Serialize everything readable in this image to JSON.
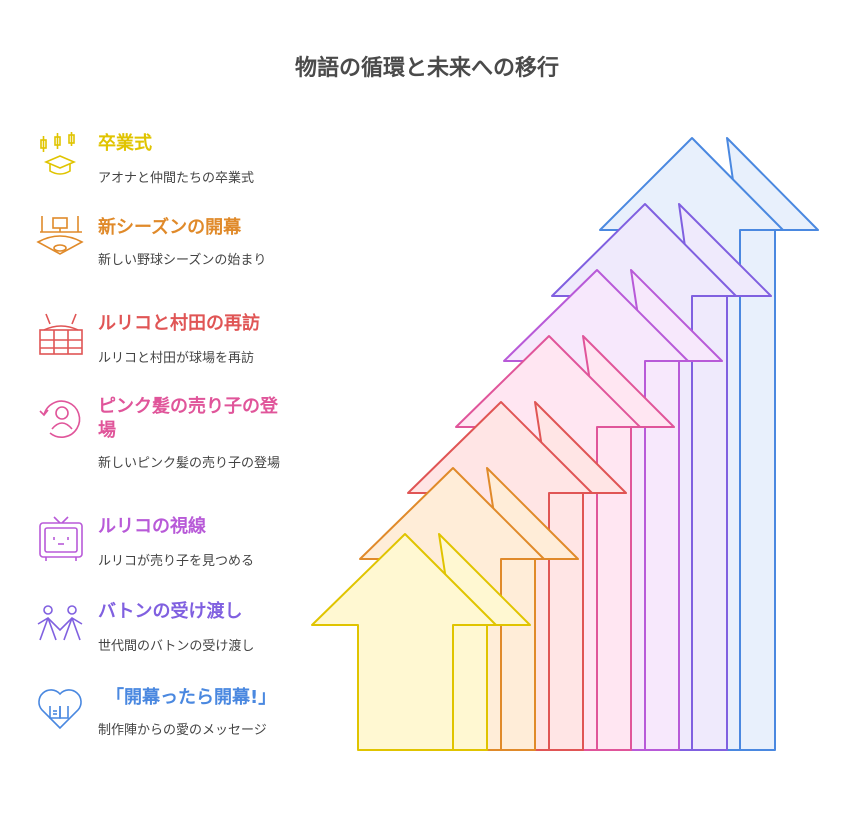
{
  "title": "物語の循環と未来への移行",
  "items": [
    {
      "heading": "卒業式",
      "description": "アオナと仲間たちの卒業式",
      "color": "#e0c400",
      "fill": "#fff8d2",
      "icon": "graduation-cap-icon"
    },
    {
      "heading": "新シーズンの開幕",
      "description": "新しい野球シーズンの始まり",
      "color": "#e08a2a",
      "fill": "#ffedd8",
      "icon": "baseball-field-icon"
    },
    {
      "heading": "ルリコと村田の再訪",
      "description": "ルリコと村田が球場を再訪",
      "color": "#e05555",
      "fill": "#ffe5e5",
      "icon": "stadium-icon"
    },
    {
      "heading": "ピンク髪の売り子の登場",
      "description": "新しいピンク髪の売り子の登場",
      "color": "#e0559a",
      "fill": "#ffe6f2",
      "icon": "person-cycle-icon"
    },
    {
      "heading": "ルリコの視線",
      "description": "ルリコが売り子を見つめる",
      "color": "#b85ad8",
      "fill": "#f7e8fc",
      "icon": "tv-face-icon"
    },
    {
      "heading": "バトンの受け渡し",
      "description": "世代間のバトンの受け渡し",
      "color": "#8060e0",
      "fill": "#efeafc",
      "icon": "people-handoff-icon"
    },
    {
      "heading": "「開幕ったら開幕!」",
      "description": "制作陣からの愛のメッセージ",
      "color": "#4a88e0",
      "fill": "#e8f0fc",
      "icon": "heart-book-icon"
    }
  ]
}
